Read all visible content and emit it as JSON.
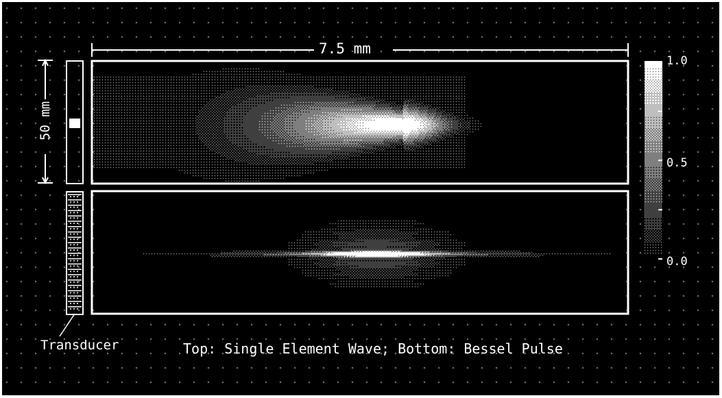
{
  "figure": {
    "width_label": "7.5  mm",
    "height_label": "50  mm",
    "transducer_label": "Transducer",
    "caption": "Top: Single Element Wave; Bottom: Bessel Pulse"
  },
  "colorbar": {
    "ticks": [
      {
        "value": 1.0,
        "label": "1.0"
      },
      {
        "value": 0.5,
        "label": "0.5"
      },
      {
        "value": 0.0,
        "label": "0.0"
      }
    ]
  },
  "panels": [
    {
      "name": "single-element-wave",
      "description": "Top"
    },
    {
      "name": "bessel-pulse",
      "description": "Bottom"
    }
  ],
  "colors": {
    "background": "#000000",
    "foreground": "#ffffff"
  }
}
